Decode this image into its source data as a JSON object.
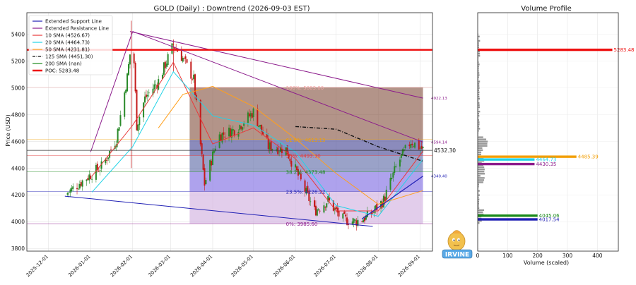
{
  "main_chart": {
    "title": "GOLD (Daily) : Downtrend (2026-09-03 EST)",
    "ylabel": "Price (USD)",
    "y_ticks": [
      "3800",
      "4000",
      "4200",
      "4400",
      "4600",
      "4800",
      "5000",
      "5200",
      "5400"
    ],
    "x_ticks": [
      "2025-12-01",
      "2026-01-01",
      "2026-02-01",
      "2026-03-01",
      "2026-04-01",
      "2026-05-01",
      "2026-06-01",
      "2026-07-01",
      "2026-08-01",
      "2026-09-01"
    ],
    "legend": [
      {
        "label": "Extended Support Line",
        "color": "#1f1fb4",
        "style": "solid"
      },
      {
        "label": "Extended Resistance Line",
        "color": "#8b1a8b",
        "style": "solid"
      },
      {
        "label": "10 SMA (4526.67)",
        "color": "#e8393a",
        "style": "solid"
      },
      {
        "label": "20 SMA (4464.73)",
        "color": "#22d3e6",
        "style": "solid"
      },
      {
        "label": "50 SMA (4231.81)",
        "color": "#ff9f1c",
        "style": "solid"
      },
      {
        "label": "125 SMA (4451.30)",
        "color": "#111111",
        "style": "dashdot"
      },
      {
        "label": "200 SMA (nan)",
        "color": "#1a8a1a",
        "style": "solid"
      },
      {
        "label": "POC: 5283.48",
        "color": "#ee1111",
        "style": "thick"
      }
    ],
    "fib_labels": [
      {
        "text": "100%: 5003.00",
        "price": 5003,
        "color": "#f4a6a6"
      },
      {
        "text": "61.8%: 4613.13",
        "price": 4613,
        "color": "#f29f05"
      },
      {
        "text": "50%: 4493.30",
        "price": 4493,
        "color": "#e23a3a"
      },
      {
        "text": "38.2%: 4373.48",
        "price": 4373,
        "color": "#1a8a1a"
      },
      {
        "text": "23.5%: 4226.22",
        "price": 4226,
        "color": "#1f1fb4"
      },
      {
        "text": "0%: 3985.60",
        "price": 3985,
        "color": "#8b1a8b"
      }
    ],
    "current_price_label": "4532.30",
    "right_labels": [
      {
        "text": "4922.13",
        "price": 4922,
        "color": "#8b1a8b"
      },
      {
        "text": "4594.14",
        "price": 4594,
        "color": "#8b1a8b"
      },
      {
        "text": "4340.40",
        "price": 4340,
        "color": "#1f1fb4"
      }
    ]
  },
  "volume_profile": {
    "title": "Volume Profile",
    "xlabel": "Volume (scaled)",
    "x_ticks": [
      "0",
      "100",
      "200",
      "300",
      "400"
    ],
    "labels": [
      {
        "text": "5283.48",
        "price": 5283,
        "color": "#ee1111"
      },
      {
        "text": "4485.39",
        "price": 4485,
        "color": "#f29f05"
      },
      {
        "text": "4464.73",
        "price": 4464,
        "color": "#22d3e6"
      },
      {
        "text": "4430.35",
        "price": 4430,
        "color": "#8b1a8b"
      },
      {
        "text": "4045.06",
        "price": 4045,
        "color": "#1a8a1a"
      },
      {
        "text": "4017.54",
        "price": 4017,
        "color": "#1f1fb4"
      }
    ]
  },
  "chart_data": [
    {
      "type": "line",
      "title": "GOLD (Daily) : Downtrend (2026-09-03 EST)",
      "ylabel": "Price (USD)",
      "ylim": [
        3780,
        5560
      ],
      "xlim": [
        "2025-11-15",
        "2026-09-10"
      ],
      "series": [
        {
          "name": "Extended Support Line",
          "x": [
            "2025-12-13",
            "2026-07-28"
          ],
          "y": [
            4190,
            3965
          ]
        },
        {
          "name": "Extended Resistance Line",
          "x": [
            "2026-01-30",
            "2026-09-03"
          ],
          "y": [
            5420,
            4922
          ]
        },
        {
          "name": "10 SMA (4526.67)",
          "x": [
            "2026-01-02",
            "2026-02-01",
            "2026-03-03",
            "2026-04-01",
            "2026-05-01",
            "2026-06-01",
            "2026-07-01",
            "2026-08-01",
            "2026-09-03"
          ],
          "y": [
            4340,
            4720,
            5190,
            4580,
            4700,
            4470,
            4080,
            4080,
            4527
          ]
        },
        {
          "name": "20 SMA (4464.73)",
          "x": [
            "2026-01-02",
            "2026-02-01",
            "2026-03-03",
            "2026-04-01",
            "2026-05-01",
            "2026-06-01",
            "2026-07-01",
            "2026-08-01",
            "2026-09-03"
          ],
          "y": [
            4220,
            4560,
            5120,
            4790,
            4720,
            4520,
            4120,
            4040,
            4465
          ]
        },
        {
          "name": "50 SMA (4231.81)",
          "x": [
            "2026-02-20",
            "2026-03-10",
            "2026-04-01",
            "2026-05-01",
            "2026-06-01",
            "2026-07-01",
            "2026-08-01",
            "2026-09-03"
          ],
          "y": [
            4700,
            4950,
            5010,
            4860,
            4620,
            4360,
            4130,
            4232
          ]
        },
        {
          "name": "125 SMA (4451.30)",
          "x": [
            "2026-06-01",
            "2026-07-01",
            "2026-08-01",
            "2026-09-03"
          ],
          "y": [
            4710,
            4690,
            4560,
            4451
          ]
        },
        {
          "name": "POC: 5283.48",
          "x": [
            "2025-11-15",
            "2026-09-10"
          ],
          "y": [
            5283,
            5283
          ]
        }
      ]
    },
    {
      "type": "bar",
      "title": "Volume Profile",
      "xlabel": "Volume (scaled)",
      "xlim": [
        0,
        470
      ],
      "categories": [
        "5283.48",
        "4485.39",
        "4464.73",
        "4430.35",
        "4045.06",
        "4017.54"
      ],
      "values": [
        450,
        330,
        190,
        190,
        200,
        200
      ]
    }
  ]
}
